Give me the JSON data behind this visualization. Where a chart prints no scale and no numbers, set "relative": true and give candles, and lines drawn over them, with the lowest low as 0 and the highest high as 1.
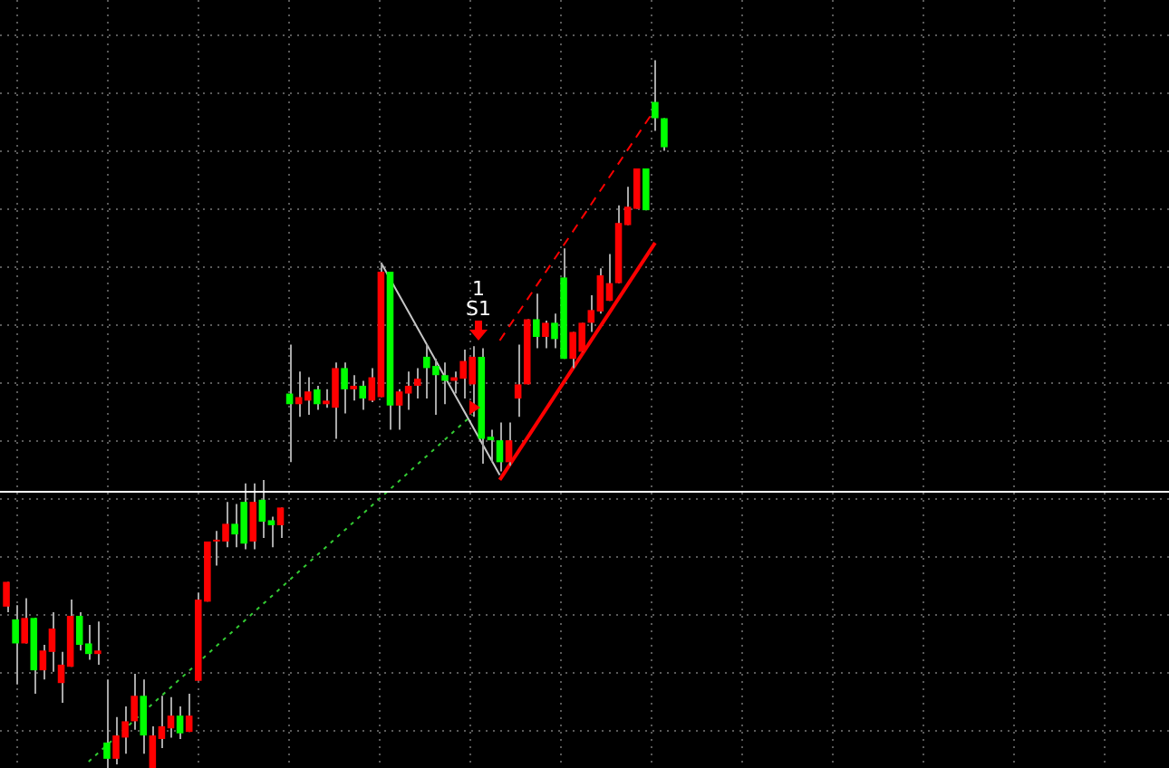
{
  "chart_data": {
    "type": "candlestick",
    "relative": true,
    "grid": true,
    "legend": false,
    "marker": "none",
    "categories": [
      null,
      null,
      null,
      null,
      null,
      null,
      null,
      null,
      null,
      null,
      null,
      null,
      null,
      null,
      null,
      null,
      null,
      null,
      null,
      null,
      null,
      null,
      null,
      null,
      null,
      null,
      null,
      null,
      null,
      null,
      null,
      null,
      null,
      null,
      null,
      null,
      null,
      null,
      null,
      null,
      null,
      null,
      null,
      null,
      null,
      null,
      null,
      null,
      null,
      null,
      null,
      null,
      null,
      null,
      null,
      null,
      null,
      null,
      null,
      null,
      null,
      null,
      null,
      null,
      null,
      null,
      null,
      null,
      null,
      null,
      null,
      null,
      null
    ],
    "ohlc": [
      [
        0.228,
        0.263,
        0.22,
        0.263
      ],
      [
        0.21,
        0.23,
        0.118,
        0.176
      ],
      [
        0.176,
        0.24,
        0.176,
        0.212
      ],
      [
        0.212,
        0.212,
        0.105,
        0.138
      ],
      [
        0.138,
        0.174,
        0.125,
        0.166
      ],
      [
        0.164,
        0.22,
        0.136,
        0.197
      ],
      [
        0.12,
        0.164,
        0.092,
        0.146
      ],
      [
        0.143,
        0.238,
        0.143,
        0.215
      ],
      [
        0.215,
        0.22,
        0.166,
        0.174
      ],
      [
        0.176,
        0.202,
        0.153,
        0.161
      ],
      [
        0.161,
        0.207,
        0.146,
        0.166
      ],
      [
        0.036,
        0.125,
        0,
        0.013
      ],
      [
        0.013,
        0.072,
        0.005,
        0.046
      ],
      [
        0.043,
        0.087,
        0.02,
        0.066
      ],
      [
        0.066,
        0.133,
        0.054,
        0.102
      ],
      [
        0.102,
        0.125,
        0.02,
        0.046
      ],
      [
        0,
        0.059,
        0,
        0.046
      ],
      [
        0.041,
        0.102,
        0.028,
        0.059
      ],
      [
        0.056,
        0.1,
        0.043,
        0.074
      ],
      [
        0.074,
        0.087,
        0.041,
        0.049
      ],
      [
        0.051,
        0.105,
        0.051,
        0.074
      ],
      [
        0.123,
        0.248,
        0.123,
        0.238
      ],
      [
        0.235,
        0.32,
        0.235,
        0.32
      ],
      [
        0.32,
        0.335,
        0.286,
        0.322
      ],
      [
        0.32,
        0.376,
        0.312,
        0.345
      ],
      [
        0.345,
        0.373,
        0.312,
        0.33
      ],
      [
        0.376,
        0.402,
        0.309,
        0.317
      ],
      [
        0.32,
        0.402,
        0.309,
        0.376
      ],
      [
        0.379,
        0.407,
        0.325,
        0.348
      ],
      [
        0.35,
        0.355,
        0.312,
        0.343
      ],
      [
        0.343,
        0.368,
        0.325,
        0.368
      ],
      [
        0.529,
        0.598,
        0.432,
        0.514
      ],
      [
        0.514,
        0.56,
        0.496,
        0.524
      ],
      [
        0.519,
        0.552,
        0.499,
        0.532
      ],
      [
        0.535,
        0.54,
        0.506,
        0.514
      ],
      [
        0.514,
        0.535,
        0.509,
        0.519
      ],
      [
        0.509,
        0.573,
        0.465,
        0.565
      ],
      [
        0.565,
        0.573,
        0.501,
        0.535
      ],
      [
        0.535,
        0.555,
        0.519,
        0.54
      ],
      [
        0.54,
        0.547,
        0.506,
        0.522
      ],
      [
        0.519,
        0.565,
        0.517,
        0.552
      ],
      [
        0.524,
        0.714,
        0.524,
        0.701
      ],
      [
        0.701,
        0.701,
        0.478,
        0.512
      ],
      [
        0.512,
        0.535,
        0.478,
        0.532
      ],
      [
        0.529,
        0.56,
        0.506,
        0.54
      ],
      [
        0.54,
        0.565,
        0.522,
        0.55
      ],
      [
        0.581,
        0.598,
        0.522,
        0.565
      ],
      [
        0.568,
        0.578,
        0.499,
        0.555
      ],
      [
        0.555,
        0.573,
        0.514,
        0.547
      ],
      [
        0.547,
        0.56,
        0.529,
        0.552
      ],
      [
        0.55,
        0.591,
        0.522,
        0.575
      ],
      [
        0.542,
        0.596,
        0.496,
        0.581
      ],
      [
        0.581,
        0.593,
        0.43,
        0.465
      ],
      [
        0.468,
        0.478,
        0.432,
        0.463
      ],
      [
        0.463,
        0.488,
        0.419,
        0.432
      ],
      [
        0.432,
        0.488,
        0.427,
        0.463
      ],
      [
        0.522,
        0.598,
        0.496,
        0.542
      ],
      [
        0.542,
        0.634,
        0.542,
        0.634
      ],
      [
        0.634,
        0.67,
        0.593,
        0.609
      ],
      [
        0.609,
        0.632,
        0.593,
        0.629
      ],
      [
        0.629,
        0.642,
        0.593,
        0.606
      ],
      [
        0.693,
        0.734,
        0.578,
        0.578
      ],
      [
        0.578,
        0.616,
        0.565,
        0.616
      ],
      [
        0.588,
        0.629,
        0.588,
        0.629
      ],
      [
        0.629,
        0.668,
        0.616,
        0.647
      ],
      [
        0.645,
        0.706,
        0.642,
        0.696
      ],
      [
        0.66,
        0.726,
        0.66,
        0.685
      ],
      [
        0.685,
        0.795,
        0.685,
        0.77
      ],
      [
        0.767,
        0.821,
        0.767,
        0.793
      ],
      [
        0.79,
        0.847,
        0.79,
        0.847
      ],
      [
        0.847,
        0.847,
        0.788,
        0.788
      ],
      [
        0.941,
        1,
        0.9,
        0.918
      ],
      [
        0.918,
        0.918,
        0.872,
        0.877
      ]
    ],
    "series": [
      {
        "type": "line",
        "color": "#33cc33",
        "line_style": "dotted",
        "values": [
          null,
          null,
          null,
          null,
          null,
          null,
          null,
          null,
          null,
          0.009,
          null,
          null,
          null,
          null,
          null,
          null,
          null,
          null,
          null,
          null,
          null,
          null,
          null,
          null,
          null,
          null,
          null,
          null,
          null,
          null,
          null,
          null,
          null,
          null,
          null,
          null,
          null,
          null,
          null,
          null,
          null,
          null,
          null,
          null,
          null,
          null,
          null,
          null,
          null,
          null,
          null,
          0.499,
          null,
          null,
          null,
          null,
          null,
          null,
          null,
          null,
          null,
          null,
          null,
          null,
          null,
          null,
          null,
          null,
          null,
          null,
          null,
          null,
          null
        ]
      },
      {
        "type": "line",
        "color": "#c8c8c8",
        "line_style": "solid",
        "values": [
          null,
          null,
          null,
          null,
          null,
          null,
          null,
          null,
          null,
          null,
          null,
          null,
          null,
          null,
          null,
          null,
          null,
          null,
          null,
          null,
          null,
          null,
          null,
          null,
          null,
          null,
          null,
          null,
          null,
          null,
          null,
          null,
          null,
          null,
          null,
          null,
          null,
          null,
          null,
          null,
          null,
          0.714,
          null,
          null,
          null,
          null,
          null,
          null,
          null,
          null,
          null,
          null,
          null,
          null,
          0.414,
          null,
          null,
          null,
          null,
          null,
          null,
          null,
          null,
          null,
          null,
          null,
          null,
          null,
          null,
          null,
          null,
          null,
          null
        ]
      },
      {
        "type": "line",
        "color": "#ff0000",
        "line_style": "dashed",
        "values": [
          null,
          null,
          null,
          null,
          null,
          null,
          null,
          null,
          null,
          null,
          null,
          null,
          null,
          null,
          null,
          null,
          null,
          null,
          null,
          null,
          null,
          null,
          null,
          null,
          null,
          null,
          null,
          null,
          null,
          null,
          null,
          null,
          null,
          null,
          null,
          null,
          null,
          null,
          null,
          null,
          null,
          null,
          null,
          null,
          null,
          null,
          null,
          null,
          null,
          null,
          null,
          null,
          null,
          null,
          0.604,
          null,
          null,
          null,
          null,
          null,
          null,
          null,
          null,
          null,
          null,
          null,
          null,
          null,
          null,
          null,
          null,
          0.931,
          null
        ]
      },
      {
        "type": "line",
        "color": "#ff0000",
        "line_style": "solid",
        "values": [
          null,
          null,
          null,
          null,
          null,
          null,
          null,
          null,
          null,
          null,
          null,
          null,
          null,
          null,
          null,
          null,
          null,
          null,
          null,
          null,
          null,
          null,
          null,
          null,
          null,
          null,
          null,
          null,
          null,
          null,
          null,
          null,
          null,
          null,
          null,
          null,
          null,
          null,
          null,
          null,
          null,
          null,
          null,
          null,
          null,
          null,
          null,
          null,
          null,
          null,
          null,
          null,
          null,
          null,
          0.407,
          null,
          null,
          null,
          null,
          null,
          null,
          null,
          null,
          null,
          null,
          null,
          null,
          null,
          null,
          null,
          null,
          0.742,
          null
        ]
      }
    ],
    "ref_lines": [
      {
        "axis": "y",
        "value": 0.391,
        "color": "#ffffff"
      }
    ],
    "annotations": [
      "1",
      "S1"
    ]
  }
}
